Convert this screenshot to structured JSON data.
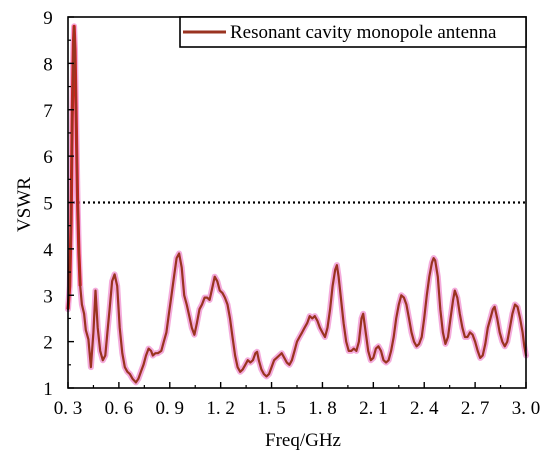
{
  "chart_data": {
    "type": "line",
    "title": "",
    "xlabel": "Freq/GHz",
    "ylabel": "VSWR",
    "xlim": [
      0.3,
      3.0
    ],
    "ylim": [
      1,
      9
    ],
    "x_ticks": [
      0.3,
      0.6,
      0.9,
      1.2,
      1.5,
      1.8,
      2.1,
      2.4,
      2.7,
      3.0
    ],
    "x_tick_labels": [
      "0. 3",
      "0. 6",
      "0. 9",
      "1. 2",
      "1. 5",
      "1. 8",
      "2. 1",
      "2. 4",
      "2. 7",
      "3. 0"
    ],
    "y_ticks": [
      1,
      2,
      3,
      4,
      5,
      6,
      7,
      8,
      9
    ],
    "y_tick_labels": [
      "1",
      "2",
      "3",
      "4",
      "5",
      "6",
      "7",
      "8",
      "9"
    ],
    "reference_line": {
      "y": 5,
      "style": "dotted",
      "color": "#000000"
    },
    "legend_position": "top-right",
    "grid": false,
    "series": [
      {
        "name": "Resonant cavity monopole antenna",
        "color": "#9a3320",
        "peak_color": "#e8191c",
        "glow_color": "#f08fd0",
        "points": [
          [
            0.3,
            2.7
          ],
          [
            0.31,
            3.2
          ],
          [
            0.318,
            4.6
          ],
          [
            0.325,
            6.8
          ],
          [
            0.332,
            8.4
          ],
          [
            0.336,
            8.8
          ],
          [
            0.341,
            8.3
          ],
          [
            0.348,
            6.9
          ],
          [
            0.356,
            5.1
          ],
          [
            0.364,
            3.9
          ],
          [
            0.372,
            3.2
          ],
          [
            0.382,
            2.8
          ],
          [
            0.395,
            2.6
          ],
          [
            0.405,
            2.25
          ],
          [
            0.42,
            2.05
          ],
          [
            0.435,
            1.45
          ],
          [
            0.45,
            2.2
          ],
          [
            0.462,
            3.1
          ],
          [
            0.475,
            2.3
          ],
          [
            0.49,
            1.8
          ],
          [
            0.505,
            1.6
          ],
          [
            0.52,
            1.7
          ],
          [
            0.532,
            2.2
          ],
          [
            0.545,
            2.7
          ],
          [
            0.56,
            3.3
          ],
          [
            0.575,
            3.45
          ],
          [
            0.59,
            3.2
          ],
          [
            0.605,
            2.3
          ],
          [
            0.62,
            1.75
          ],
          [
            0.635,
            1.45
          ],
          [
            0.65,
            1.35
          ],
          [
            0.665,
            1.3
          ],
          [
            0.68,
            1.2
          ],
          [
            0.7,
            1.12
          ],
          [
            0.715,
            1.2
          ],
          [
            0.73,
            1.35
          ],
          [
            0.745,
            1.5
          ],
          [
            0.76,
            1.7
          ],
          [
            0.775,
            1.85
          ],
          [
            0.79,
            1.8
          ],
          [
            0.8,
            1.7
          ],
          [
            0.815,
            1.75
          ],
          [
            0.83,
            1.75
          ],
          [
            0.85,
            1.8
          ],
          [
            0.865,
            2.0
          ],
          [
            0.88,
            2.2
          ],
          [
            0.895,
            2.6
          ],
          [
            0.91,
            3.0
          ],
          [
            0.925,
            3.4
          ],
          [
            0.94,
            3.8
          ],
          [
            0.955,
            3.9
          ],
          [
            0.97,
            3.6
          ],
          [
            0.985,
            3.0
          ],
          [
            1.0,
            2.8
          ],
          [
            1.015,
            2.55
          ],
          [
            1.03,
            2.3
          ],
          [
            1.045,
            2.15
          ],
          [
            1.06,
            2.4
          ],
          [
            1.075,
            2.7
          ],
          [
            1.09,
            2.8
          ],
          [
            1.105,
            2.95
          ],
          [
            1.12,
            2.95
          ],
          [
            1.135,
            2.9
          ],
          [
            1.15,
            3.15
          ],
          [
            1.165,
            3.4
          ],
          [
            1.18,
            3.3
          ],
          [
            1.195,
            3.1
          ],
          [
            1.21,
            3.05
          ],
          [
            1.225,
            2.95
          ],
          [
            1.24,
            2.8
          ],
          [
            1.255,
            2.5
          ],
          [
            1.27,
            2.1
          ],
          [
            1.285,
            1.7
          ],
          [
            1.3,
            1.45
          ],
          [
            1.315,
            1.35
          ],
          [
            1.33,
            1.4
          ],
          [
            1.345,
            1.5
          ],
          [
            1.36,
            1.6
          ],
          [
            1.375,
            1.55
          ],
          [
            1.39,
            1.6
          ],
          [
            1.405,
            1.75
          ],
          [
            1.415,
            1.78
          ],
          [
            1.425,
            1.6
          ],
          [
            1.44,
            1.4
          ],
          [
            1.455,
            1.3
          ],
          [
            1.47,
            1.25
          ],
          [
            1.485,
            1.3
          ],
          [
            1.5,
            1.45
          ],
          [
            1.515,
            1.6
          ],
          [
            1.53,
            1.65
          ],
          [
            1.545,
            1.7
          ],
          [
            1.56,
            1.75
          ],
          [
            1.575,
            1.65
          ],
          [
            1.59,
            1.55
          ],
          [
            1.605,
            1.5
          ],
          [
            1.62,
            1.6
          ],
          [
            1.635,
            1.8
          ],
          [
            1.65,
            2.0
          ],
          [
            1.665,
            2.1
          ],
          [
            1.68,
            2.2
          ],
          [
            1.695,
            2.3
          ],
          [
            1.71,
            2.4
          ],
          [
            1.725,
            2.55
          ],
          [
            1.74,
            2.5
          ],
          [
            1.755,
            2.55
          ],
          [
            1.77,
            2.45
          ],
          [
            1.785,
            2.3
          ],
          [
            1.8,
            2.2
          ],
          [
            1.815,
            2.1
          ],
          [
            1.83,
            2.3
          ],
          [
            1.845,
            2.7
          ],
          [
            1.86,
            3.2
          ],
          [
            1.875,
            3.55
          ],
          [
            1.885,
            3.65
          ],
          [
            1.895,
            3.4
          ],
          [
            1.91,
            2.9
          ],
          [
            1.925,
            2.4
          ],
          [
            1.94,
            2.0
          ],
          [
            1.955,
            1.8
          ],
          [
            1.97,
            1.8
          ],
          [
            1.985,
            1.85
          ],
          [
            2.0,
            1.8
          ],
          [
            2.015,
            2.0
          ],
          [
            2.03,
            2.5
          ],
          [
            2.04,
            2.6
          ],
          [
            2.055,
            2.2
          ],
          [
            2.07,
            1.8
          ],
          [
            2.085,
            1.6
          ],
          [
            2.1,
            1.65
          ],
          [
            2.115,
            1.85
          ],
          [
            2.13,
            1.9
          ],
          [
            2.145,
            1.8
          ],
          [
            2.16,
            1.6
          ],
          [
            2.175,
            1.55
          ],
          [
            2.19,
            1.6
          ],
          [
            2.205,
            1.8
          ],
          [
            2.22,
            2.1
          ],
          [
            2.235,
            2.5
          ],
          [
            2.25,
            2.8
          ],
          [
            2.265,
            3.0
          ],
          [
            2.28,
            2.95
          ],
          [
            2.295,
            2.8
          ],
          [
            2.31,
            2.5
          ],
          [
            2.325,
            2.2
          ],
          [
            2.34,
            2.0
          ],
          [
            2.355,
            1.9
          ],
          [
            2.37,
            1.95
          ],
          [
            2.385,
            2.1
          ],
          [
            2.4,
            2.5
          ],
          [
            2.415,
            3.0
          ],
          [
            2.43,
            3.4
          ],
          [
            2.445,
            3.7
          ],
          [
            2.455,
            3.8
          ],
          [
            2.465,
            3.75
          ],
          [
            2.48,
            3.4
          ],
          [
            2.495,
            2.7
          ],
          [
            2.51,
            2.2
          ],
          [
            2.525,
            1.95
          ],
          [
            2.54,
            2.1
          ],
          [
            2.555,
            2.5
          ],
          [
            2.57,
            2.9
          ],
          [
            2.58,
            3.1
          ],
          [
            2.595,
            2.95
          ],
          [
            2.61,
            2.6
          ],
          [
            2.625,
            2.3
          ],
          [
            2.64,
            2.1
          ],
          [
            2.655,
            2.1
          ],
          [
            2.67,
            2.2
          ],
          [
            2.685,
            2.15
          ],
          [
            2.7,
            2.0
          ],
          [
            2.715,
            1.8
          ],
          [
            2.73,
            1.65
          ],
          [
            2.745,
            1.7
          ],
          [
            2.76,
            1.95
          ],
          [
            2.775,
            2.3
          ],
          [
            2.79,
            2.5
          ],
          [
            2.805,
            2.7
          ],
          [
            2.815,
            2.75
          ],
          [
            2.83,
            2.5
          ],
          [
            2.845,
            2.2
          ],
          [
            2.86,
            2.0
          ],
          [
            2.875,
            1.9
          ],
          [
            2.89,
            2.0
          ],
          [
            2.905,
            2.3
          ],
          [
            2.92,
            2.6
          ],
          [
            2.935,
            2.8
          ],
          [
            2.95,
            2.75
          ],
          [
            2.965,
            2.5
          ],
          [
            2.98,
            2.2
          ],
          [
            2.99,
            1.9
          ],
          [
            3.0,
            1.7
          ]
        ]
      }
    ]
  }
}
